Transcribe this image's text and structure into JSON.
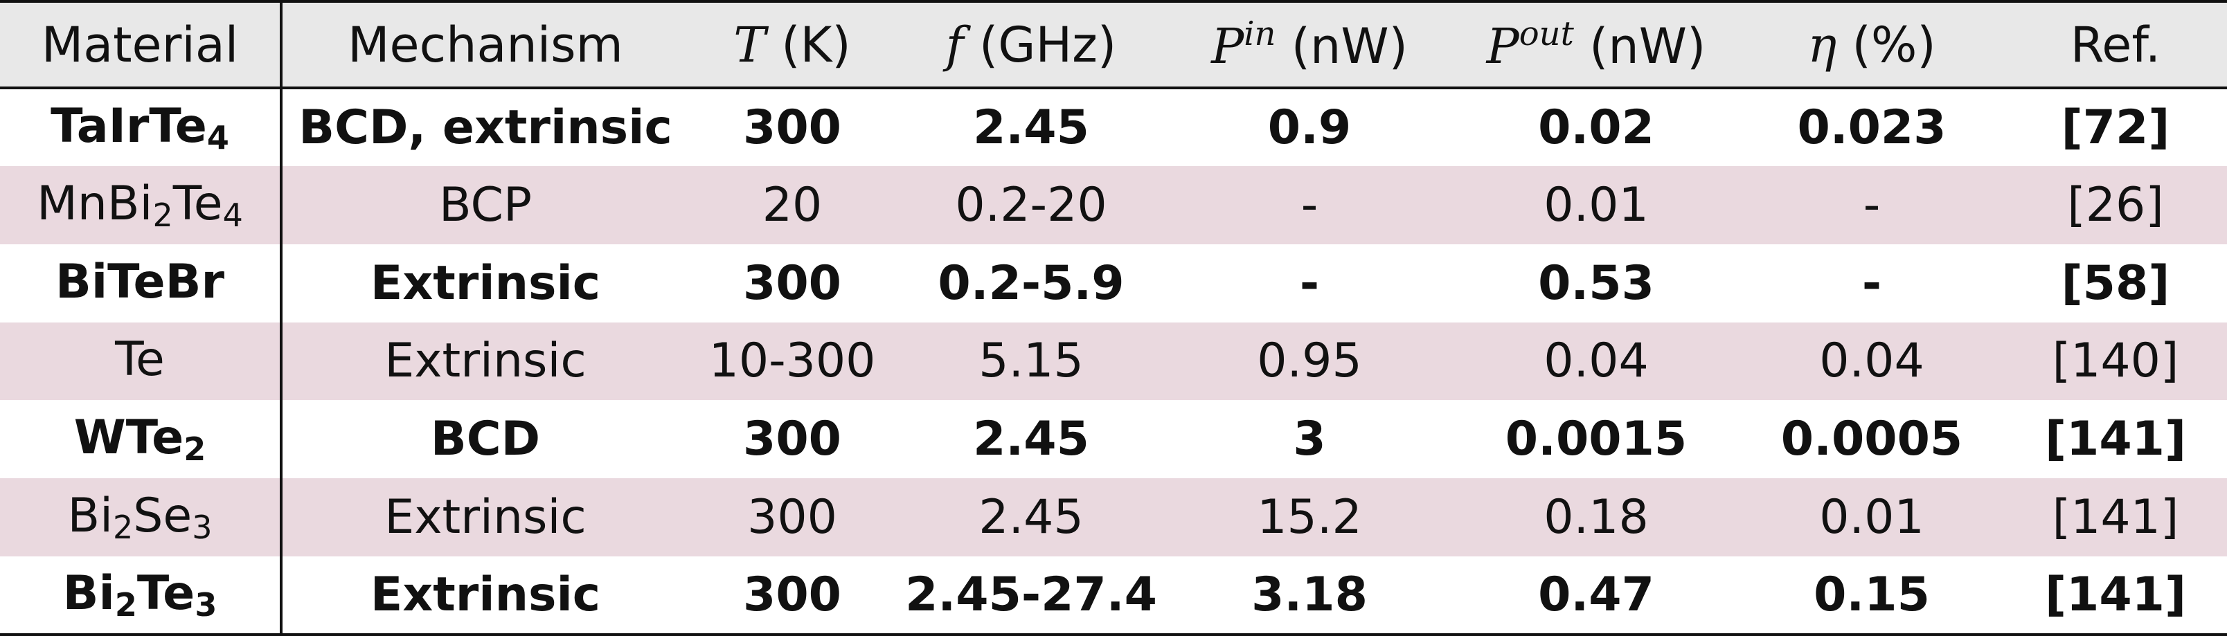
{
  "header": {
    "material": "Material",
    "mechanism": "Mechanism",
    "temp_sym": "T",
    "temp_unit": " (K)",
    "freq_sym": "f",
    "freq_unit": " (GHz)",
    "pin_sym": "P",
    "pin_sup": "in",
    "pin_unit": " (nW)",
    "pout_sym": "P",
    "pout_sup": "out",
    "pout_unit": " (nW)",
    "eta_sym": "η",
    "eta_unit": " (%)",
    "ref": "Ref."
  },
  "rows": [
    {
      "mat_pre": "TaIrTe",
      "mat_sub": "4",
      "mat_mid": "",
      "mat_sub2": "",
      "mechanism": "BCD, extrinsic",
      "T": "300",
      "f": "2.45",
      "pin": "0.9",
      "pout": "0.02",
      "eta": "0.023",
      "ref": "[72]"
    },
    {
      "mat_pre": "MnBi",
      "mat_sub": "2",
      "mat_mid": "Te",
      "mat_sub2": "4",
      "mechanism": "BCP",
      "T": "20",
      "f": "0.2-20",
      "pin": "-",
      "pout": "0.01",
      "eta": "-",
      "ref": "[26]"
    },
    {
      "mat_pre": "BiTeBr",
      "mat_sub": "",
      "mat_mid": "",
      "mat_sub2": "",
      "mechanism": "Extrinsic",
      "T": "300",
      "f": "0.2-5.9",
      "pin": "-",
      "pout": "0.53",
      "eta": "-",
      "ref": "[58]"
    },
    {
      "mat_pre": "Te",
      "mat_sub": "",
      "mat_mid": "",
      "mat_sub2": "",
      "mechanism": "Extrinsic",
      "T": "10-300",
      "f": "5.15",
      "pin": "0.95",
      "pout": "0.04",
      "eta": "0.04",
      "ref": "[140]"
    },
    {
      "mat_pre": "WTe",
      "mat_sub": "2",
      "mat_mid": "",
      "mat_sub2": "",
      "mechanism": "BCD",
      "T": "300",
      "f": "2.45",
      "pin": "3",
      "pout": "0.0015",
      "eta": "0.0005",
      "ref": "[141]"
    },
    {
      "mat_pre": "Bi",
      "mat_sub": "2",
      "mat_mid": "Se",
      "mat_sub2": "3",
      "mechanism": "Extrinsic",
      "T": "300",
      "f": "2.45",
      "pin": "15.2",
      "pout": "0.18",
      "eta": "0.01",
      "ref": "[141]"
    },
    {
      "mat_pre": "Bi",
      "mat_sub": "2",
      "mat_mid": "Te",
      "mat_sub2": "3",
      "mechanism": "Extrinsic",
      "T": "300",
      "f": "2.45-27.4",
      "pin": "3.18",
      "pout": "0.47",
      "eta": "0.15",
      "ref": "[141]"
    }
  ]
}
